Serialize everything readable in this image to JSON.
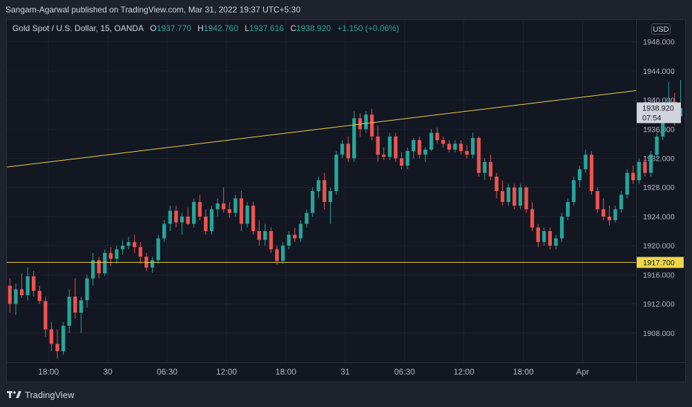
{
  "header": {
    "publisher_text": "Sangam-Agarwal published on TradingView.com, Mar 31, 2022 19:37 UTC+5:30"
  },
  "legend": {
    "symbol": "Gold Spot / U.S. Dollar, 15, OANDA",
    "open_label": "O",
    "open": "1937.770",
    "high_label": "H",
    "high": "1942.760",
    "low_label": "L",
    "low": "1937.616",
    "close_label": "C",
    "close": "1938.920",
    "change": "+1.150 (+0.06%)"
  },
  "currency_badge": "USD",
  "price_tag": {
    "price": "1938.920",
    "countdown": "07:54"
  },
  "level_tag": "1917.700",
  "footer": {
    "brand": "TradingView",
    "logo_icon": "tradingview-logo-icon"
  },
  "colors": {
    "up": "#26a69a",
    "down": "#ef5350",
    "trendline": "#f0d648",
    "background": "#131722",
    "grid": "#1f2330",
    "text": "#d1d4dc"
  },
  "chart_data": {
    "type": "candlestick",
    "instrument": "Gold Spot / U.S. Dollar",
    "interval": "15",
    "source": "OANDA",
    "currency": "USD",
    "y_ticks": [
      1908,
      1912,
      1916,
      1920,
      1924,
      1928,
      1932,
      1936,
      1940,
      1944,
      1948
    ],
    "y_tick_labels": [
      "1908.000",
      "1912.000",
      "1916.000",
      "1920.000",
      "1924.000",
      "1928.000",
      "1932.000",
      "1936.000",
      "1940.000",
      "1944.000",
      "1948.000"
    ],
    "ylim": [
      1904.0,
      1951.0
    ],
    "x_ticks": [
      "18:00",
      "30",
      "06:30",
      "12:00",
      "18:00",
      "31",
      "06:30",
      "12:00",
      "18:00",
      "Apr"
    ],
    "x_tick_positions": [
      7,
      17,
      27,
      37,
      47,
      57,
      67,
      77,
      87,
      97
    ],
    "xlim": [
      0,
      106
    ],
    "last_price": 1938.92,
    "horizontal_line": {
      "price": 1917.7
    },
    "trend_line": {
      "x1": 0,
      "y1": 1930.8,
      "x2": 106,
      "y2": 1941.3
    },
    "candles": [
      {
        "o": 1914.5,
        "h": 1915.5,
        "l": 1910.8,
        "c": 1912.0
      },
      {
        "o": 1912.0,
        "h": 1914.8,
        "l": 1910.5,
        "c": 1914.0
      },
      {
        "o": 1914.0,
        "h": 1916.2,
        "l": 1912.8,
        "c": 1913.2
      },
      {
        "o": 1913.2,
        "h": 1917.0,
        "l": 1912.5,
        "c": 1915.8
      },
      {
        "o": 1915.8,
        "h": 1916.5,
        "l": 1913.0,
        "c": 1913.8
      },
      {
        "o": 1913.8,
        "h": 1914.5,
        "l": 1912.0,
        "c": 1912.4
      },
      {
        "o": 1912.4,
        "h": 1913.0,
        "l": 1907.5,
        "c": 1908.5
      },
      {
        "o": 1908.5,
        "h": 1909.5,
        "l": 1905.5,
        "c": 1906.5
      },
      {
        "o": 1906.5,
        "h": 1908.5,
        "l": 1904.5,
        "c": 1905.5
      },
      {
        "o": 1905.5,
        "h": 1909.5,
        "l": 1905.0,
        "c": 1909.0
      },
      {
        "o": 1909.0,
        "h": 1914.0,
        "l": 1908.0,
        "c": 1913.0
      },
      {
        "o": 1913.0,
        "h": 1915.5,
        "l": 1910.0,
        "c": 1910.8
      },
      {
        "o": 1910.8,
        "h": 1913.0,
        "l": 1908.0,
        "c": 1912.5
      },
      {
        "o": 1912.5,
        "h": 1916.0,
        "l": 1911.5,
        "c": 1915.5
      },
      {
        "o": 1915.5,
        "h": 1919.0,
        "l": 1914.5,
        "c": 1918.0
      },
      {
        "o": 1918.0,
        "h": 1918.5,
        "l": 1915.5,
        "c": 1916.2
      },
      {
        "o": 1916.2,
        "h": 1919.5,
        "l": 1915.8,
        "c": 1919.0
      },
      {
        "o": 1919.0,
        "h": 1919.8,
        "l": 1917.2,
        "c": 1918.2
      },
      {
        "o": 1918.2,
        "h": 1920.0,
        "l": 1917.5,
        "c": 1919.5
      },
      {
        "o": 1919.5,
        "h": 1920.8,
        "l": 1918.8,
        "c": 1920.0
      },
      {
        "o": 1920.0,
        "h": 1921.2,
        "l": 1919.5,
        "c": 1920.5
      },
      {
        "o": 1920.5,
        "h": 1921.5,
        "l": 1919.0,
        "c": 1919.8
      },
      {
        "o": 1919.8,
        "h": 1920.5,
        "l": 1917.5,
        "c": 1918.5
      },
      {
        "o": 1918.5,
        "h": 1919.0,
        "l": 1916.5,
        "c": 1917.0
      },
      {
        "o": 1917.0,
        "h": 1918.5,
        "l": 1916.3,
        "c": 1918.0
      },
      {
        "o": 1918.0,
        "h": 1921.5,
        "l": 1917.5,
        "c": 1921.0
      },
      {
        "o": 1921.0,
        "h": 1923.5,
        "l": 1920.5,
        "c": 1923.0
      },
      {
        "o": 1923.0,
        "h": 1925.5,
        "l": 1922.0,
        "c": 1924.8
      },
      {
        "o": 1924.8,
        "h": 1925.5,
        "l": 1922.5,
        "c": 1923.2
      },
      {
        "o": 1923.2,
        "h": 1924.5,
        "l": 1921.5,
        "c": 1924.0
      },
      {
        "o": 1924.0,
        "h": 1925.2,
        "l": 1922.8,
        "c": 1923.0
      },
      {
        "o": 1923.0,
        "h": 1926.5,
        "l": 1922.5,
        "c": 1926.0
      },
      {
        "o": 1926.0,
        "h": 1927.0,
        "l": 1923.5,
        "c": 1924.0
      },
      {
        "o": 1924.0,
        "h": 1925.0,
        "l": 1921.5,
        "c": 1922.0
      },
      {
        "o": 1922.0,
        "h": 1925.5,
        "l": 1921.5,
        "c": 1925.0
      },
      {
        "o": 1925.0,
        "h": 1926.5,
        "l": 1924.0,
        "c": 1925.8
      },
      {
        "o": 1925.8,
        "h": 1928.0,
        "l": 1924.5,
        "c": 1925.0
      },
      {
        "o": 1925.0,
        "h": 1926.0,
        "l": 1923.8,
        "c": 1924.5
      },
      {
        "o": 1924.5,
        "h": 1927.0,
        "l": 1924.0,
        "c": 1926.5
      },
      {
        "o": 1926.5,
        "h": 1927.5,
        "l": 1922.0,
        "c": 1923.0
      },
      {
        "o": 1923.0,
        "h": 1926.0,
        "l": 1922.5,
        "c": 1925.5
      },
      {
        "o": 1925.5,
        "h": 1926.0,
        "l": 1921.5,
        "c": 1922.0
      },
      {
        "o": 1922.0,
        "h": 1923.5,
        "l": 1920.0,
        "c": 1920.8
      },
      {
        "o": 1920.8,
        "h": 1923.0,
        "l": 1920.0,
        "c": 1922.0
      },
      {
        "o": 1922.0,
        "h": 1922.5,
        "l": 1919.0,
        "c": 1919.5
      },
      {
        "o": 1919.5,
        "h": 1920.0,
        "l": 1917.4,
        "c": 1917.9
      },
      {
        "o": 1917.9,
        "h": 1920.5,
        "l": 1917.5,
        "c": 1920.0
      },
      {
        "o": 1920.0,
        "h": 1922.0,
        "l": 1919.5,
        "c": 1921.5
      },
      {
        "o": 1921.5,
        "h": 1922.5,
        "l": 1920.5,
        "c": 1921.0
      },
      {
        "o": 1921.0,
        "h": 1923.5,
        "l": 1920.5,
        "c": 1923.0
      },
      {
        "o": 1923.0,
        "h": 1925.0,
        "l": 1922.5,
        "c": 1924.5
      },
      {
        "o": 1924.5,
        "h": 1928.0,
        "l": 1924.0,
        "c": 1927.5
      },
      {
        "o": 1927.5,
        "h": 1929.5,
        "l": 1926.5,
        "c": 1929.0
      },
      {
        "o": 1929.0,
        "h": 1930.0,
        "l": 1925.0,
        "c": 1926.0
      },
      {
        "o": 1926.0,
        "h": 1928.0,
        "l": 1923.0,
        "c": 1927.5
      },
      {
        "o": 1927.5,
        "h": 1933.0,
        "l": 1927.0,
        "c": 1932.5
      },
      {
        "o": 1932.5,
        "h": 1934.5,
        "l": 1932.0,
        "c": 1934.0
      },
      {
        "o": 1934.0,
        "h": 1935.0,
        "l": 1931.5,
        "c": 1932.0
      },
      {
        "o": 1932.0,
        "h": 1938.5,
        "l": 1931.5,
        "c": 1937.5
      },
      {
        "o": 1937.5,
        "h": 1938.2,
        "l": 1935.0,
        "c": 1936.0
      },
      {
        "o": 1936.0,
        "h": 1938.5,
        "l": 1935.5,
        "c": 1938.0
      },
      {
        "o": 1938.0,
        "h": 1938.8,
        "l": 1934.5,
        "c": 1935.0
      },
      {
        "o": 1935.0,
        "h": 1936.5,
        "l": 1931.5,
        "c": 1932.5
      },
      {
        "o": 1932.5,
        "h": 1933.5,
        "l": 1931.8,
        "c": 1932.2
      },
      {
        "o": 1932.2,
        "h": 1935.5,
        "l": 1931.8,
        "c": 1935.0
      },
      {
        "o": 1935.0,
        "h": 1935.5,
        "l": 1931.5,
        "c": 1932.0
      },
      {
        "o": 1932.0,
        "h": 1932.8,
        "l": 1930.5,
        "c": 1931.0
      },
      {
        "o": 1931.0,
        "h": 1933.5,
        "l": 1930.5,
        "c": 1933.0
      },
      {
        "o": 1933.0,
        "h": 1934.8,
        "l": 1932.0,
        "c": 1934.5
      },
      {
        "o": 1934.5,
        "h": 1935.0,
        "l": 1932.0,
        "c": 1932.5
      },
      {
        "o": 1932.5,
        "h": 1933.5,
        "l": 1931.5,
        "c": 1933.2
      },
      {
        "o": 1933.2,
        "h": 1936.0,
        "l": 1933.0,
        "c": 1935.5
      },
      {
        "o": 1935.5,
        "h": 1936.2,
        "l": 1934.0,
        "c": 1934.5
      },
      {
        "o": 1934.5,
        "h": 1935.0,
        "l": 1933.5,
        "c": 1934.0
      },
      {
        "o": 1934.0,
        "h": 1934.5,
        "l": 1932.8,
        "c": 1933.2
      },
      {
        "o": 1933.2,
        "h": 1934.5,
        "l": 1932.8,
        "c": 1934.0
      },
      {
        "o": 1934.0,
        "h": 1934.5,
        "l": 1932.5,
        "c": 1933.0
      },
      {
        "o": 1933.0,
        "h": 1933.8,
        "l": 1932.0,
        "c": 1932.5
      },
      {
        "o": 1932.5,
        "h": 1935.5,
        "l": 1932.0,
        "c": 1934.8
      },
      {
        "o": 1934.8,
        "h": 1935.0,
        "l": 1929.5,
        "c": 1930.0
      },
      {
        "o": 1930.0,
        "h": 1932.0,
        "l": 1929.0,
        "c": 1931.5
      },
      {
        "o": 1931.5,
        "h": 1932.5,
        "l": 1929.0,
        "c": 1929.5
      },
      {
        "o": 1929.5,
        "h": 1930.0,
        "l": 1926.5,
        "c": 1927.5
      },
      {
        "o": 1927.5,
        "h": 1929.0,
        "l": 1925.5,
        "c": 1926.0
      },
      {
        "o": 1926.0,
        "h": 1928.5,
        "l": 1925.5,
        "c": 1928.0
      },
      {
        "o": 1928.0,
        "h": 1928.5,
        "l": 1925.0,
        "c": 1925.5
      },
      {
        "o": 1925.5,
        "h": 1928.5,
        "l": 1925.0,
        "c": 1928.0
      },
      {
        "o": 1928.0,
        "h": 1928.2,
        "l": 1924.5,
        "c": 1925.0
      },
      {
        "o": 1925.0,
        "h": 1926.0,
        "l": 1922.0,
        "c": 1922.5
      },
      {
        "o": 1922.5,
        "h": 1923.0,
        "l": 1919.8,
        "c": 1920.5
      },
      {
        "o": 1920.5,
        "h": 1922.5,
        "l": 1920.0,
        "c": 1922.0
      },
      {
        "o": 1922.0,
        "h": 1922.5,
        "l": 1919.5,
        "c": 1920.0
      },
      {
        "o": 1920.0,
        "h": 1921.5,
        "l": 1919.5,
        "c": 1921.0
      },
      {
        "o": 1921.0,
        "h": 1924.5,
        "l": 1920.5,
        "c": 1924.0
      },
      {
        "o": 1924.0,
        "h": 1926.5,
        "l": 1923.5,
        "c": 1926.0
      },
      {
        "o": 1926.0,
        "h": 1929.5,
        "l": 1925.5,
        "c": 1929.0
      },
      {
        "o": 1929.0,
        "h": 1931.0,
        "l": 1928.0,
        "c": 1930.5
      },
      {
        "o": 1930.5,
        "h": 1933.2,
        "l": 1930.0,
        "c": 1932.5
      },
      {
        "o": 1932.5,
        "h": 1933.0,
        "l": 1927.0,
        "c": 1927.5
      },
      {
        "o": 1927.5,
        "h": 1928.0,
        "l": 1924.5,
        "c": 1925.0
      },
      {
        "o": 1925.0,
        "h": 1926.5,
        "l": 1923.5,
        "c": 1924.0
      },
      {
        "o": 1924.0,
        "h": 1925.5,
        "l": 1922.8,
        "c": 1923.5
      },
      {
        "o": 1923.5,
        "h": 1925.5,
        "l": 1923.2,
        "c": 1925.0
      },
      {
        "o": 1925.0,
        "h": 1927.5,
        "l": 1924.5,
        "c": 1927.0
      },
      {
        "o": 1927.0,
        "h": 1930.5,
        "l": 1926.5,
        "c": 1930.0
      },
      {
        "o": 1930.0,
        "h": 1931.0,
        "l": 1928.5,
        "c": 1929.0
      },
      {
        "o": 1929.0,
        "h": 1932.0,
        "l": 1928.5,
        "c": 1931.5
      },
      {
        "o": 1931.5,
        "h": 1932.0,
        "l": 1929.5,
        "c": 1930.0
      },
      {
        "o": 1930.0,
        "h": 1933.0,
        "l": 1929.5,
        "c": 1932.5
      },
      {
        "o": 1932.5,
        "h": 1935.5,
        "l": 1932.0,
        "c": 1935.0
      },
      {
        "o": 1935.0,
        "h": 1938.5,
        "l": 1934.5,
        "c": 1938.0
      },
      {
        "o": 1938.0,
        "h": 1942.5,
        "l": 1937.0,
        "c": 1939.8
      },
      {
        "o": 1939.8,
        "h": 1941.0,
        "l": 1936.5,
        "c": 1937.77
      },
      {
        "o": 1937.77,
        "h": 1942.76,
        "l": 1937.616,
        "c": 1938.92
      }
    ]
  }
}
